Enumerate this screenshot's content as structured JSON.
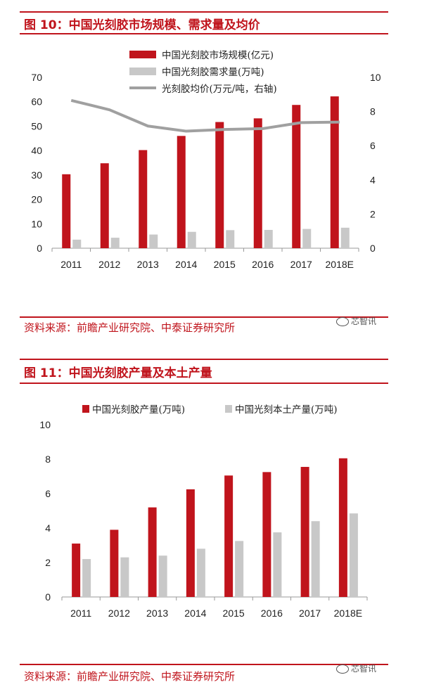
{
  "figures": [
    {
      "title": "图 10：中国光刻胶市场规模、需求量及均价",
      "source": "资料来源：前瞻产业研究院、中泰证券研究所",
      "watermark": "芯智讯"
    },
    {
      "title": "图 11：中国光刻胶产量及本土产量",
      "source": "资料来源：前瞻产业研究院、中泰证券研究所",
      "watermark": "芯智讯"
    }
  ],
  "chart_data": [
    {
      "type": "bar",
      "categories": [
        "2011",
        "2012",
        "2013",
        "2014",
        "2015",
        "2016",
        "2017",
        "2018E"
      ],
      "series": [
        {
          "name": "中国光刻胶市场规模(亿元)",
          "type": "bar",
          "axis": "left",
          "color": "#c0141c",
          "values": [
            30.3,
            34.8,
            40.2,
            46.0,
            51.7,
            53.2,
            58.7,
            62.2
          ]
        },
        {
          "name": "中国光刻胶需求量(万吨)",
          "type": "bar",
          "axis": "left",
          "color": "#c8c8c8",
          "values": [
            3.5,
            4.3,
            5.6,
            6.7,
            7.4,
            7.5,
            7.9,
            8.4
          ]
        },
        {
          "name": "光刻胶均价(万元/吨，右轴)",
          "type": "line",
          "axis": "right",
          "color": "#a0a0a0",
          "values": [
            8.65,
            8.1,
            7.15,
            6.85,
            6.95,
            7.0,
            7.35,
            7.38
          ]
        }
      ],
      "ylim_left": [
        0,
        70
      ],
      "yticks_left": [
        "0",
        "10",
        "20",
        "30",
        "40",
        "50",
        "60",
        "70"
      ],
      "ylim_right": [
        0,
        10
      ],
      "yticks_right": [
        "0",
        "2",
        "4",
        "6",
        "8",
        "10"
      ],
      "legend_position": "top-center",
      "grid": false
    },
    {
      "type": "bar",
      "categories": [
        "2011",
        "2012",
        "2013",
        "2014",
        "2015",
        "2016",
        "2017",
        "2018E"
      ],
      "series": [
        {
          "name": "中国光刻胶产量(万吨)",
          "color": "#c0141c",
          "values": [
            3.1,
            3.9,
            5.2,
            6.25,
            7.05,
            7.25,
            7.55,
            8.05
          ]
        },
        {
          "name": "中国光刻本土产量(万吨)",
          "color": "#c8c8c8",
          "values": [
            2.2,
            2.3,
            2.4,
            2.8,
            3.25,
            3.75,
            4.4,
            4.85
          ]
        }
      ],
      "ylim": [
        0,
        10
      ],
      "yticks": [
        "0",
        "2",
        "4",
        "6",
        "8",
        "10"
      ],
      "legend_position": "top-center",
      "grid": false
    }
  ]
}
